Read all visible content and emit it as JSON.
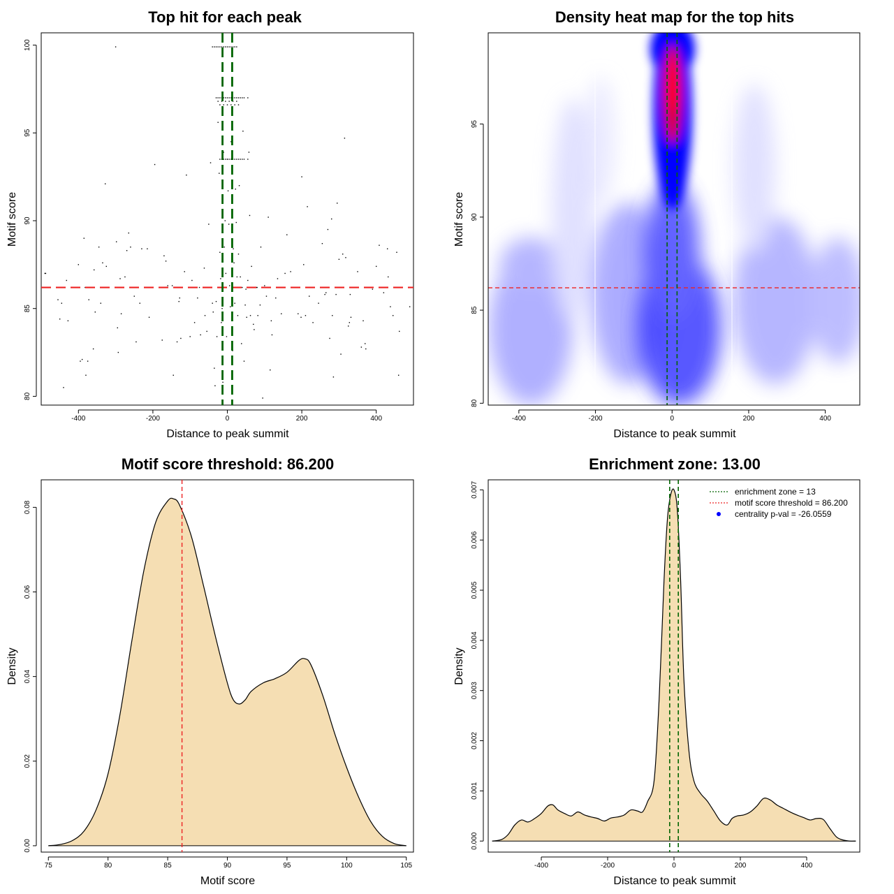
{
  "chart_data": [
    {
      "type": "scatter",
      "title": "Top hit for each peak",
      "xlabel": "Distance to peak summit",
      "ylabel": "Motif score",
      "xlim": [
        -500,
        500
      ],
      "ylim": [
        79.5,
        100.7
      ],
      "xticks": [
        -400,
        -200,
        0,
        200,
        400
      ],
      "yticks": [
        80,
        85,
        90,
        95,
        100
      ],
      "threshold_y": 86.2,
      "zone_x": [
        -13,
        13
      ],
      "threshold_color": "#ee2222",
      "zone_color": "#006400",
      "points": [
        [
          -490,
          87
        ],
        [
          -488,
          87
        ],
        [
          -455,
          85.5
        ],
        [
          -450,
          84.4
        ],
        [
          -445,
          85.3
        ],
        [
          -440,
          80.5
        ],
        [
          -432,
          86.6
        ],
        [
          -428,
          84.3
        ],
        [
          -400,
          87.5
        ],
        [
          -395,
          82
        ],
        [
          -390,
          82.1
        ],
        [
          -385,
          89
        ],
        [
          -382,
          86.2
        ],
        [
          -380,
          81.2
        ],
        [
          -375,
          82
        ],
        [
          -372,
          85.5
        ],
        [
          -360,
          82.7
        ],
        [
          -358,
          87.2
        ],
        [
          -355,
          84.8
        ],
        [
          -345,
          88.5
        ],
        [
          -340,
          85.3
        ],
        [
          -335,
          87.6
        ],
        [
          -328,
          92.1
        ],
        [
          -325,
          87.4
        ],
        [
          -300,
          99.9
        ],
        [
          -298,
          88.8
        ],
        [
          -295,
          83.9
        ],
        [
          -293,
          82.5
        ],
        [
          -288,
          86.7
        ],
        [
          -285,
          84.7
        ],
        [
          -275,
          86.8
        ],
        [
          -270,
          88.3
        ],
        [
          -265,
          89.3
        ],
        [
          -260,
          88.5
        ],
        [
          -250,
          85.7
        ],
        [
          -245,
          83.1
        ],
        [
          -235,
          85.3
        ],
        [
          -230,
          88.4
        ],
        [
          -215,
          88.4
        ],
        [
          -210,
          84.5
        ],
        [
          -195,
          93.2
        ],
        [
          -175,
          83.2
        ],
        [
          -170,
          88
        ],
        [
          -165,
          87.7
        ],
        [
          -160,
          86.3
        ],
        [
          -148,
          86.3
        ],
        [
          -145,
          81.2
        ],
        [
          -135,
          83.1
        ],
        [
          -130,
          85.4
        ],
        [
          -128,
          85.6
        ],
        [
          -125,
          83.3
        ],
        [
          -115,
          87.1
        ],
        [
          -110,
          92.6
        ],
        [
          -100,
          83.4
        ],
        [
          -95,
          86.6
        ],
        [
          -88,
          84.2
        ],
        [
          -80,
          85.6
        ],
        [
          -75,
          86.2
        ],
        [
          -72,
          83.5
        ],
        [
          -62,
          87.3
        ],
        [
          -60,
          84.6
        ],
        [
          -55,
          83.7
        ],
        [
          -50,
          89.8
        ],
        [
          -45,
          93.3
        ],
        [
          -40,
          85.3
        ],
        [
          -38,
          84.8
        ],
        [
          -35,
          81.6
        ],
        [
          -33,
          80.6
        ],
        [
          -30,
          85.4
        ],
        [
          -28,
          83.4
        ],
        [
          -25,
          95.6
        ],
        [
          -22,
          92.7
        ],
        [
          -20,
          88.2
        ],
        [
          -18,
          86.7
        ],
        [
          -16,
          84.2
        ],
        [
          -14,
          85
        ],
        [
          -12,
          80.8
        ],
        [
          -10,
          93.9
        ],
        [
          -8,
          88.5
        ],
        [
          -6,
          90
        ],
        [
          -4,
          87
        ],
        [
          -2,
          83.4
        ],
        [
          0,
          93.5
        ],
        [
          2,
          91.7
        ],
        [
          4,
          89.8
        ],
        [
          6,
          86.3
        ],
        [
          8,
          85.1
        ],
        [
          10,
          94.5
        ],
        [
          12,
          92.3
        ],
        [
          14,
          82.6
        ],
        [
          16,
          88.4
        ],
        [
          18,
          87.6
        ],
        [
          20,
          85.3
        ],
        [
          22,
          91.8
        ],
        [
          24,
          89.9
        ],
        [
          26,
          86.8
        ],
        [
          28,
          84.6
        ],
        [
          30,
          88.1
        ],
        [
          32,
          92
        ],
        [
          35,
          86.8
        ],
        [
          38,
          83
        ],
        [
          40,
          86.2
        ],
        [
          42,
          95.1
        ],
        [
          45,
          82
        ],
        [
          48,
          85.2
        ],
        [
          50,
          86.1
        ],
        [
          52,
          84.5
        ],
        [
          55,
          86.6
        ],
        [
          58,
          93.9
        ],
        [
          60,
          90.3
        ],
        [
          62,
          84.6
        ],
        [
          65,
          87.4
        ],
        [
          70,
          84.1
        ],
        [
          72,
          83.8
        ],
        [
          78,
          86.2
        ],
        [
          80,
          86.2
        ],
        [
          82,
          84.6
        ],
        [
          88,
          85.2
        ],
        [
          90,
          88.5
        ],
        [
          95,
          79.9
        ],
        [
          100,
          86.3
        ],
        [
          105,
          85.7
        ],
        [
          110,
          90.2
        ],
        [
          115,
          81.5
        ],
        [
          118,
          84.3
        ],
        [
          120,
          83.5
        ],
        [
          130,
          85.6
        ],
        [
          135,
          86.7
        ],
        [
          145,
          84.7
        ],
        [
          155,
          87
        ],
        [
          160,
          89.2
        ],
        [
          170,
          87.1
        ],
        [
          190,
          84.7
        ],
        [
          198,
          84.5
        ],
        [
          200,
          92.5
        ],
        [
          205,
          87.5
        ],
        [
          210,
          84.6
        ],
        [
          215,
          90.8
        ],
        [
          220,
          85.7
        ],
        [
          230,
          84.2
        ],
        [
          245,
          85.3
        ],
        [
          255,
          88.7
        ],
        [
          262,
          85.8
        ],
        [
          265,
          85.9
        ],
        [
          270,
          89.5
        ],
        [
          275,
          83.3
        ],
        [
          280,
          90.1
        ],
        [
          282,
          84.6
        ],
        [
          285,
          81.1
        ],
        [
          292,
          85.8
        ],
        [
          295,
          91
        ],
        [
          300,
          87.8
        ],
        [
          305,
          82.4
        ],
        [
          310,
          88.1
        ],
        [
          315,
          94.7
        ],
        [
          318,
          87.9
        ],
        [
          325,
          84
        ],
        [
          328,
          84.2
        ],
        [
          330,
          85.8
        ],
        [
          332,
          84.5
        ],
        [
          340,
          86.2
        ],
        [
          350,
          87.1
        ],
        [
          360,
          82.8
        ],
        [
          365,
          84.3
        ],
        [
          370,
          83
        ],
        [
          372,
          82.7
        ],
        [
          390,
          86.1
        ],
        [
          400,
          87.4
        ],
        [
          408,
          88.6
        ],
        [
          420,
          85.9
        ],
        [
          430,
          88.4
        ],
        [
          432,
          86.8
        ],
        [
          438,
          85.1
        ],
        [
          445,
          84.6
        ],
        [
          455,
          88.2
        ],
        [
          460,
          81.2
        ],
        [
          462,
          83.7
        ],
        [
          490,
          85.1
        ]
      ],
      "ticks_marks": [
        [
          -40,
          99.9
        ],
        [
          -35,
          99.9
        ],
        [
          -30,
          99.9
        ],
        [
          -25,
          99.9
        ],
        [
          -20,
          99.9
        ],
        [
          -15,
          99.9
        ],
        [
          -10,
          99.9
        ],
        [
          -5,
          99.9
        ],
        [
          0,
          99.9
        ],
        [
          5,
          99.9
        ],
        [
          10,
          99.9
        ],
        [
          15,
          99.9
        ],
        [
          20,
          99.9
        ],
        [
          25,
          99.9
        ],
        [
          -30,
          97
        ],
        [
          -25,
          97
        ],
        [
          -20,
          97
        ],
        [
          -15,
          97
        ],
        [
          -10,
          97
        ],
        [
          -5,
          97
        ],
        [
          0,
          97
        ],
        [
          5,
          97
        ],
        [
          10,
          97
        ],
        [
          15,
          97
        ],
        [
          20,
          97
        ],
        [
          25,
          97
        ],
        [
          30,
          97
        ],
        [
          35,
          97
        ],
        [
          40,
          97
        ],
        [
          45,
          97
        ],
        [
          55,
          97
        ],
        [
          -25,
          96.8
        ],
        [
          -20,
          96.6
        ],
        [
          -15,
          96.8
        ],
        [
          -10,
          96.6
        ],
        [
          -5,
          96.8
        ],
        [
          0,
          96.6
        ],
        [
          5,
          96.8
        ],
        [
          10,
          96.6
        ],
        [
          15,
          96.8
        ],
        [
          20,
          96.6
        ],
        [
          25,
          96.8
        ],
        [
          30,
          96.6
        ],
        [
          -20,
          93.5
        ],
        [
          -15,
          93.5
        ],
        [
          -10,
          93.5
        ],
        [
          -5,
          93.5
        ],
        [
          0,
          93.5
        ],
        [
          5,
          93.5
        ],
        [
          10,
          93.5
        ],
        [
          15,
          93.5
        ],
        [
          20,
          93.5
        ],
        [
          25,
          93.5
        ],
        [
          30,
          93.5
        ],
        [
          35,
          93.5
        ],
        [
          40,
          93.5
        ],
        [
          45,
          93.5
        ],
        [
          55,
          93.5
        ]
      ]
    },
    {
      "type": "heatmap",
      "title": "Density heat map for the top hits",
      "xlabel": "Distance to peak summit",
      "ylabel": "Motif score",
      "xlim": [
        -480,
        490
      ],
      "ylim": [
        79.9,
        99.9
      ],
      "xticks": [
        -400,
        -200,
        0,
        200,
        400
      ],
      "yticks": [
        80,
        85,
        90,
        95
      ],
      "threshold_y": 86.2,
      "zone_x": [
        -13,
        13
      ],
      "threshold_color": "#ee2222",
      "zone_color": "#006400",
      "colors": [
        "#ffffff",
        "#0000ff",
        "#ff0000"
      ]
    },
    {
      "type": "area",
      "title": "Motif score threshold: 86.200",
      "xlabel": "Motif score",
      "ylabel": "Density",
      "xlim": [
        74.4,
        105.6
      ],
      "ylim": [
        -0.0015,
        0.0865
      ],
      "xticks": [
        75,
        80,
        85,
        90,
        95,
        100,
        105
      ],
      "yticks": [
        0.0,
        0.02,
        0.04,
        0.06,
        0.08
      ],
      "ytick_labels": [
        "0.00",
        "0.02",
        "0.04",
        "0.06",
        "0.08"
      ],
      "threshold_x": 86.2,
      "fill_color": "#f5deb3",
      "threshold_color": "#ee2222",
      "x": [
        75,
        76,
        77,
        78,
        79,
        80,
        81,
        82,
        83,
        84,
        85,
        85.5,
        86,
        87,
        88,
        89,
        90,
        90.5,
        91,
        91.5,
        92,
        93,
        94,
        95,
        96,
        96.5,
        97,
        98,
        99,
        100,
        101,
        102,
        103,
        104,
        105
      ],
      "y": [
        0,
        0.0003,
        0.0012,
        0.0035,
        0.0085,
        0.017,
        0.031,
        0.0485,
        0.065,
        0.0765,
        0.0815,
        0.082,
        0.0805,
        0.073,
        0.0615,
        0.0495,
        0.0385,
        0.0345,
        0.0335,
        0.0345,
        0.0365,
        0.0385,
        0.0395,
        0.041,
        0.0438,
        0.0442,
        0.0428,
        0.0355,
        0.0265,
        0.0185,
        0.0115,
        0.0058,
        0.0022,
        0.0005,
        0
      ]
    },
    {
      "type": "area",
      "title": "Enrichment zone: 13.00",
      "xlabel": "Distance to peak summit",
      "ylabel": "Density",
      "xlim": [
        -560,
        560
      ],
      "ylim": [
        -0.00022,
        0.0072
      ],
      "xticks": [
        -400,
        -200,
        0,
        200,
        400
      ],
      "yticks": [
        0.0,
        0.001,
        0.002,
        0.003,
        0.004,
        0.005,
        0.006,
        0.007
      ],
      "ytick_labels": [
        "0.000",
        "0.001",
        "0.002",
        "0.003",
        "0.004",
        "0.005",
        "0.006",
        "0.007"
      ],
      "zone_x": [
        -13,
        13
      ],
      "fill_color": "#f5deb3",
      "zone_color": "#006400",
      "x": [
        -548,
        -520,
        -500,
        -480,
        -460,
        -440,
        -420,
        -400,
        -380,
        -365,
        -350,
        -330,
        -310,
        -290,
        -270,
        -250,
        -230,
        -210,
        -190,
        -170,
        -150,
        -130,
        -110,
        -95,
        -80,
        -60,
        -45,
        -30,
        -20,
        -10,
        0,
        10,
        20,
        30,
        45,
        60,
        80,
        100,
        120,
        140,
        160,
        175,
        190,
        210,
        230,
        250,
        270,
        290,
        310,
        330,
        350,
        370,
        390,
        410,
        430,
        450,
        470,
        490,
        510,
        530,
        548
      ],
      "y": [
        0,
        3e-05,
        0.00013,
        0.00032,
        0.00042,
        0.00038,
        0.00045,
        0.00055,
        0.0007,
        0.00072,
        0.00062,
        0.00055,
        0.0005,
        0.00058,
        0.00052,
        0.00048,
        0.00045,
        0.0004,
        0.00046,
        0.00048,
        0.00052,
        0.00062,
        0.0006,
        0.00058,
        0.00078,
        0.0012,
        0.0028,
        0.0052,
        0.0064,
        0.0069,
        0.007,
        0.0066,
        0.0052,
        0.0032,
        0.0018,
        0.0012,
        0.00095,
        0.0008,
        0.0006,
        0.0004,
        0.00032,
        0.00045,
        0.0005,
        0.00052,
        0.00058,
        0.0007,
        0.00085,
        0.00082,
        0.00072,
        0.00065,
        0.00058,
        0.00052,
        0.00047,
        0.00042,
        0.00045,
        0.00043,
        0.00025,
        8e-05,
        2e-05,
        0,
        0
      ],
      "legend": [
        {
          "label": "enrichment zone = 13",
          "kind": "dotted",
          "color": "#006400"
        },
        {
          "label": "motif score threshold = 86.200",
          "kind": "dotted",
          "color": "#ee2222"
        },
        {
          "label": "centrality p-val = -26.0559",
          "kind": "point",
          "color": "#0000ff"
        }
      ]
    }
  ]
}
